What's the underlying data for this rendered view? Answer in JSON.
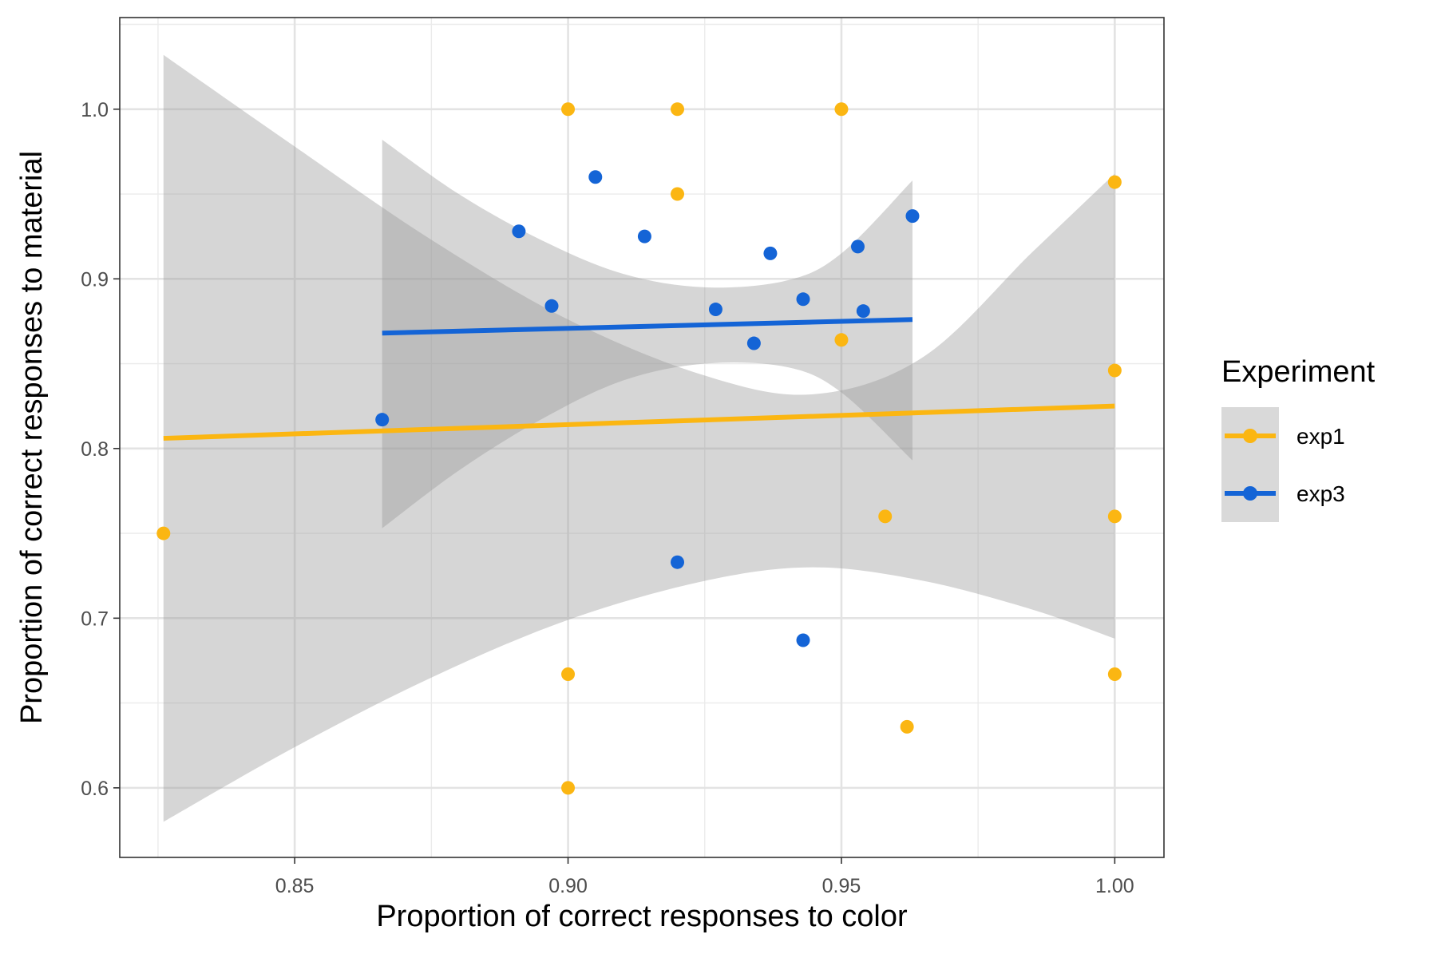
{
  "chart_data": {
    "type": "scatter",
    "title": "",
    "xlabel": "Proportion of correct responses to color",
    "ylabel": "Proportion of correct responses to material",
    "xlim": [
      0.818,
      1.009
    ],
    "ylim": [
      0.559,
      1.054
    ],
    "x_ticks": [
      0.85,
      0.9,
      0.95,
      1.0
    ],
    "x_tick_labels": [
      "0.85",
      "0.90",
      "0.95",
      "1.00"
    ],
    "y_ticks": [
      0.6,
      0.7,
      0.8,
      0.9,
      1.0
    ],
    "y_tick_labels": [
      "0.6",
      "0.7",
      "0.8",
      "0.9",
      "1.0"
    ],
    "grid": true,
    "legend": {
      "title": "Experiment",
      "placement": "right"
    },
    "series": [
      {
        "name": "exp1",
        "color": "#FBB612",
        "points": [
          {
            "x": 0.826,
            "y": 0.75
          },
          {
            "x": 0.9,
            "y": 1.0
          },
          {
            "x": 0.9,
            "y": 0.667
          },
          {
            "x": 0.9,
            "y": 0.6
          },
          {
            "x": 0.92,
            "y": 1.0
          },
          {
            "x": 0.92,
            "y": 0.95
          },
          {
            "x": 0.95,
            "y": 1.0
          },
          {
            "x": 0.95,
            "y": 0.864
          },
          {
            "x": 0.958,
            "y": 0.76
          },
          {
            "x": 0.962,
            "y": 0.636
          },
          {
            "x": 1.0,
            "y": 0.957
          },
          {
            "x": 1.0,
            "y": 0.846
          },
          {
            "x": 1.0,
            "y": 0.76
          },
          {
            "x": 1.0,
            "y": 0.667
          }
        ],
        "fit": {
          "x": [
            0.826,
            1.0
          ],
          "y": [
            0.806,
            0.825
          ]
        },
        "band": {
          "x": [
            0.826,
            0.85,
            0.875,
            0.9,
            0.925,
            0.945,
            0.965,
            0.985,
            1.0
          ],
          "upper": [
            1.032,
            0.978,
            0.923,
            0.876,
            0.843,
            0.832,
            0.854,
            0.916,
            0.962
          ],
          "lower": [
            0.58,
            0.624,
            0.665,
            0.699,
            0.722,
            0.73,
            0.722,
            0.705,
            0.688
          ]
        }
      },
      {
        "name": "exp3",
        "color": "#1464D6",
        "points": [
          {
            "x": 0.866,
            "y": 0.817
          },
          {
            "x": 0.891,
            "y": 0.928
          },
          {
            "x": 0.897,
            "y": 0.884
          },
          {
            "x": 0.905,
            "y": 0.96
          },
          {
            "x": 0.914,
            "y": 0.925
          },
          {
            "x": 0.92,
            "y": 0.733
          },
          {
            "x": 0.927,
            "y": 0.882
          },
          {
            "x": 0.934,
            "y": 0.862
          },
          {
            "x": 0.937,
            "y": 0.915
          },
          {
            "x": 0.943,
            "y": 0.888
          },
          {
            "x": 0.943,
            "y": 0.687
          },
          {
            "x": 0.953,
            "y": 0.919
          },
          {
            "x": 0.954,
            "y": 0.881
          },
          {
            "x": 0.963,
            "y": 0.937
          }
        ],
        "fit": {
          "x": [
            0.866,
            0.963
          ],
          "y": [
            0.868,
            0.876
          ]
        },
        "band": {
          "x": [
            0.866,
            0.88,
            0.895,
            0.91,
            0.925,
            0.94,
            0.95,
            0.963
          ],
          "upper": [
            0.982,
            0.95,
            0.923,
            0.903,
            0.895,
            0.899,
            0.915,
            0.958
          ],
          "lower": [
            0.753,
            0.787,
            0.817,
            0.84,
            0.85,
            0.848,
            0.833,
            0.793
          ]
        }
      }
    ]
  }
}
